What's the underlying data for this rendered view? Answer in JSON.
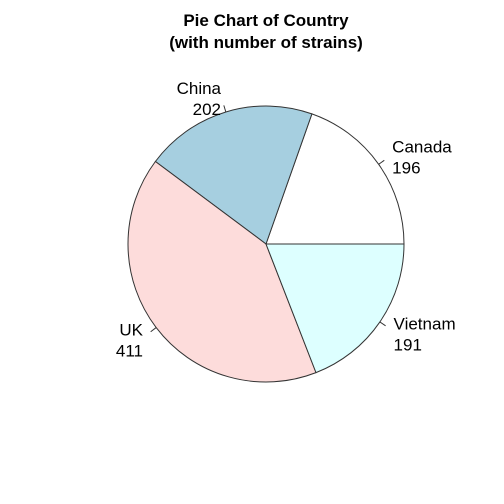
{
  "chart_data": {
    "type": "pie",
    "title": "Pie Chart of Country",
    "subtitle": "(with number of strains)",
    "categories": [
      "Canada",
      "China",
      "UK",
      "Vietnam"
    ],
    "values": [
      196,
      202,
      411,
      191
    ],
    "colors": [
      "#ffffff",
      "#a6cfe0",
      "#fddcdb",
      "#ddffff"
    ],
    "direction": "counterclockwise",
    "start": "east",
    "border_color": "#333333"
  }
}
